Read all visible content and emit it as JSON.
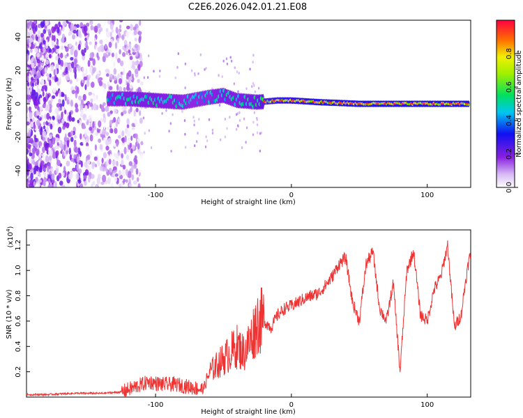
{
  "title": "C2E6.2026.042.01.21.E08",
  "chart_data": [
    {
      "type": "heatmap",
      "title": "C2E6.2026.042.01.21.E08",
      "xlabel": "Height of straight line (km)",
      "ylabel": "Frequency (Hz)",
      "xlim": [
        -195,
        132
      ],
      "ylim": [
        -50,
        50
      ],
      "xticks": [
        -100,
        0,
        100
      ],
      "xtick_labels": [
        "-100",
        "0",
        "100"
      ],
      "yticks": [
        -40,
        -20,
        0,
        20,
        40
      ],
      "ytick_labels": [
        "-40",
        "-20",
        "0",
        "20",
        "40"
      ],
      "colorbar": {
        "label": "Normalized spectral amplitude",
        "range": [
          0,
          1
        ],
        "ticks": [
          0,
          0.2,
          0.4,
          0.6,
          0.8
        ],
        "tick_labels": [
          "0.0",
          "0.2",
          "0.4",
          "0.6",
          "0.8"
        ]
      },
      "ridge": {
        "x": [
          -135,
          -120,
          -100,
          -80,
          -60,
          -50,
          -40,
          -25,
          -10,
          0,
          20,
          50,
          80,
          110,
          130
        ],
        "frequency": [
          3,
          3,
          2,
          1,
          4,
          5,
          2,
          1,
          2,
          2,
          1,
          0,
          0,
          0,
          0
        ],
        "amplitude": [
          0.5,
          0.55,
          0.55,
          0.5,
          0.5,
          0.55,
          0.55,
          0.6,
          0.8,
          0.8,
          0.85,
          0.85,
          0.85,
          0.85,
          0.85
        ]
      }
    },
    {
      "type": "line",
      "xlabel": "Height of straight line (km)",
      "ylabel": "SNR (10 * v/v)",
      "y_multiplier": "(x10",
      "y_multiplier_exp": "4",
      "y_multiplier_close": ")",
      "xlim": [
        -195,
        132
      ],
      "ylim": [
        0,
        1.32
      ],
      "xticks": [
        -100,
        0,
        100
      ],
      "xtick_labels": [
        "-100",
        "0",
        "100"
      ],
      "yticks": [
        0.2,
        0.4,
        0.6,
        0.8,
        1.0,
        1.2
      ],
      "ytick_labels": [
        "0.2",
        "0.4",
        "0.6",
        "0.8",
        "1.0",
        "1.2"
      ],
      "series": [
        {
          "name": "SNR",
          "color": "#ee3333",
          "x": [
            -195,
            -180,
            -160,
            -140,
            -125,
            -115,
            -105,
            -95,
            -85,
            -75,
            -65,
            -60,
            -55,
            -50,
            -45,
            -40,
            -35,
            -30,
            -25,
            -20,
            -15,
            -10,
            -5,
            0,
            5,
            10,
            15,
            20,
            25,
            30,
            35,
            40,
            45,
            50,
            55,
            60,
            65,
            70,
            75,
            80,
            85,
            90,
            95,
            100,
            105,
            110,
            115,
            120,
            125,
            128,
            131
          ],
          "y": [
            0.02,
            0.02,
            0.03,
            0.03,
            0.04,
            0.08,
            0.12,
            0.1,
            0.1,
            0.08,
            0.06,
            0.2,
            0.25,
            0.3,
            0.35,
            0.4,
            0.35,
            0.45,
            0.6,
            0.6,
            0.55,
            0.65,
            0.7,
            0.72,
            0.75,
            0.78,
            0.8,
            0.82,
            0.88,
            0.95,
            1.05,
            1.1,
            0.75,
            0.6,
            1.05,
            1.15,
            0.7,
            0.6,
            0.9,
            0.2,
            1.0,
            1.15,
            0.65,
            0.6,
            0.85,
            0.95,
            1.2,
            0.55,
            0.65,
            0.9,
            1.1
          ]
        }
      ]
    }
  ]
}
